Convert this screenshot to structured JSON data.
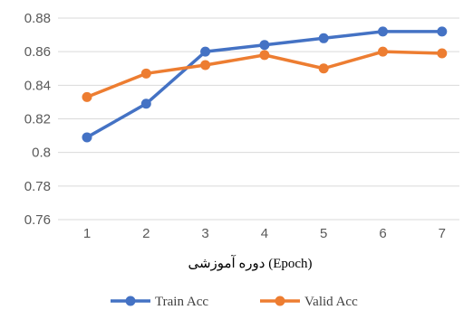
{
  "chart_data": {
    "type": "line",
    "categories": [
      "1",
      "2",
      "3",
      "4",
      "5",
      "6",
      "7"
    ],
    "series": [
      {
        "name": "Train Acc",
        "color": "#4472c4",
        "values": [
          0.809,
          0.829,
          0.86,
          0.864,
          0.868,
          0.872,
          0.872
        ]
      },
      {
        "name": "Valid Acc",
        "color": "#ed7d31",
        "values": [
          0.833,
          0.847,
          0.852,
          0.858,
          0.85,
          0.86,
          0.859
        ]
      }
    ],
    "y_ticks": [
      "0.76",
      "0.78",
      "0.8",
      "0.82",
      "0.84",
      "0.86",
      "0.88"
    ],
    "ylim": [
      0.76,
      0.88
    ],
    "xlabel": "دوره آموزشی (Epoch)",
    "ylabel": "",
    "grid": true,
    "legend_position": "bottom"
  }
}
